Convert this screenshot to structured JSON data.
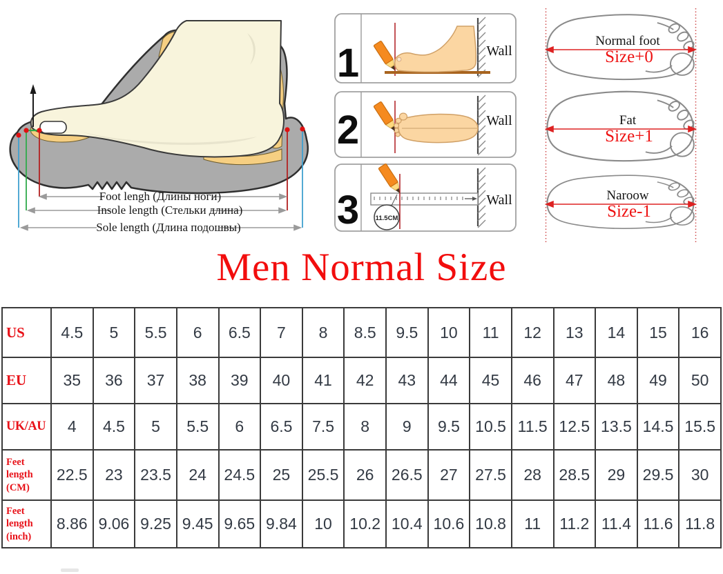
{
  "title": "Men Normal Size",
  "shoe_diagram": {
    "measure_labels": [
      "Foot lengh (Длины ноги)",
      "Insole length (Стельки длина)",
      "Sole length (Длина подошвы)"
    ]
  },
  "measure_steps": [
    {
      "number": "1",
      "wall_label": "Wall"
    },
    {
      "number": "2",
      "wall_label": "Wall"
    },
    {
      "number": "3",
      "wall_label": "Wall",
      "mark_callout": "11.5CM"
    }
  ],
  "foot_types": [
    {
      "name": "Normal foot",
      "size_adjust": "Size+0"
    },
    {
      "name": "Fat",
      "size_adjust": "Size+1"
    },
    {
      "name": "Naroow",
      "size_adjust": "Size-1"
    }
  ],
  "size_table": {
    "rows": [
      {
        "label": "US",
        "values": [
          "4.5",
          "5",
          "5.5",
          "6",
          "6.5",
          "7",
          "8",
          "8.5",
          "9.5",
          "10",
          "11",
          "12",
          "13",
          "14",
          "15",
          "16"
        ]
      },
      {
        "label": "EU",
        "values": [
          "35",
          "36",
          "37",
          "38",
          "39",
          "40",
          "41",
          "42",
          "43",
          "44",
          "45",
          "46",
          "47",
          "48",
          "49",
          "50"
        ]
      },
      {
        "label": "UK/AU",
        "values": [
          "4",
          "4.5",
          "5",
          "5.5",
          "6",
          "6.5",
          "7.5",
          "8",
          "9",
          "9.5",
          "10.5",
          "11.5",
          "12.5",
          "13.5",
          "14.5",
          "15.5"
        ]
      },
      {
        "label": "Feet length (CM)",
        "values": [
          "22.5",
          "23",
          "23.5",
          "24",
          "24.5",
          "25",
          "25.5",
          "26",
          "26.5",
          "27",
          "27.5",
          "28",
          "28.5",
          "29",
          "29.5",
          "30"
        ]
      },
      {
        "label": "Feet length (inch)",
        "values": [
          "8.86",
          "9.06",
          "9.25",
          "9.45",
          "9.65",
          "9.84",
          "10",
          "10.2",
          "10.4",
          "10.6",
          "10.8",
          "11",
          "11.2",
          "11.4",
          "11.6",
          "11.8"
        ]
      }
    ]
  },
  "colors": {
    "accent_red": "#f20d0d",
    "table_label_red": "#e81219",
    "cell_text": "#333a44",
    "table_border": "#3a3a3a",
    "insole_yellow": "#f6cf82",
    "shoe_gray": "#ababab",
    "foot_cream": "#f8f4dc",
    "skin": "#fbd6a2",
    "pencil_orange": "#f58a1f"
  }
}
